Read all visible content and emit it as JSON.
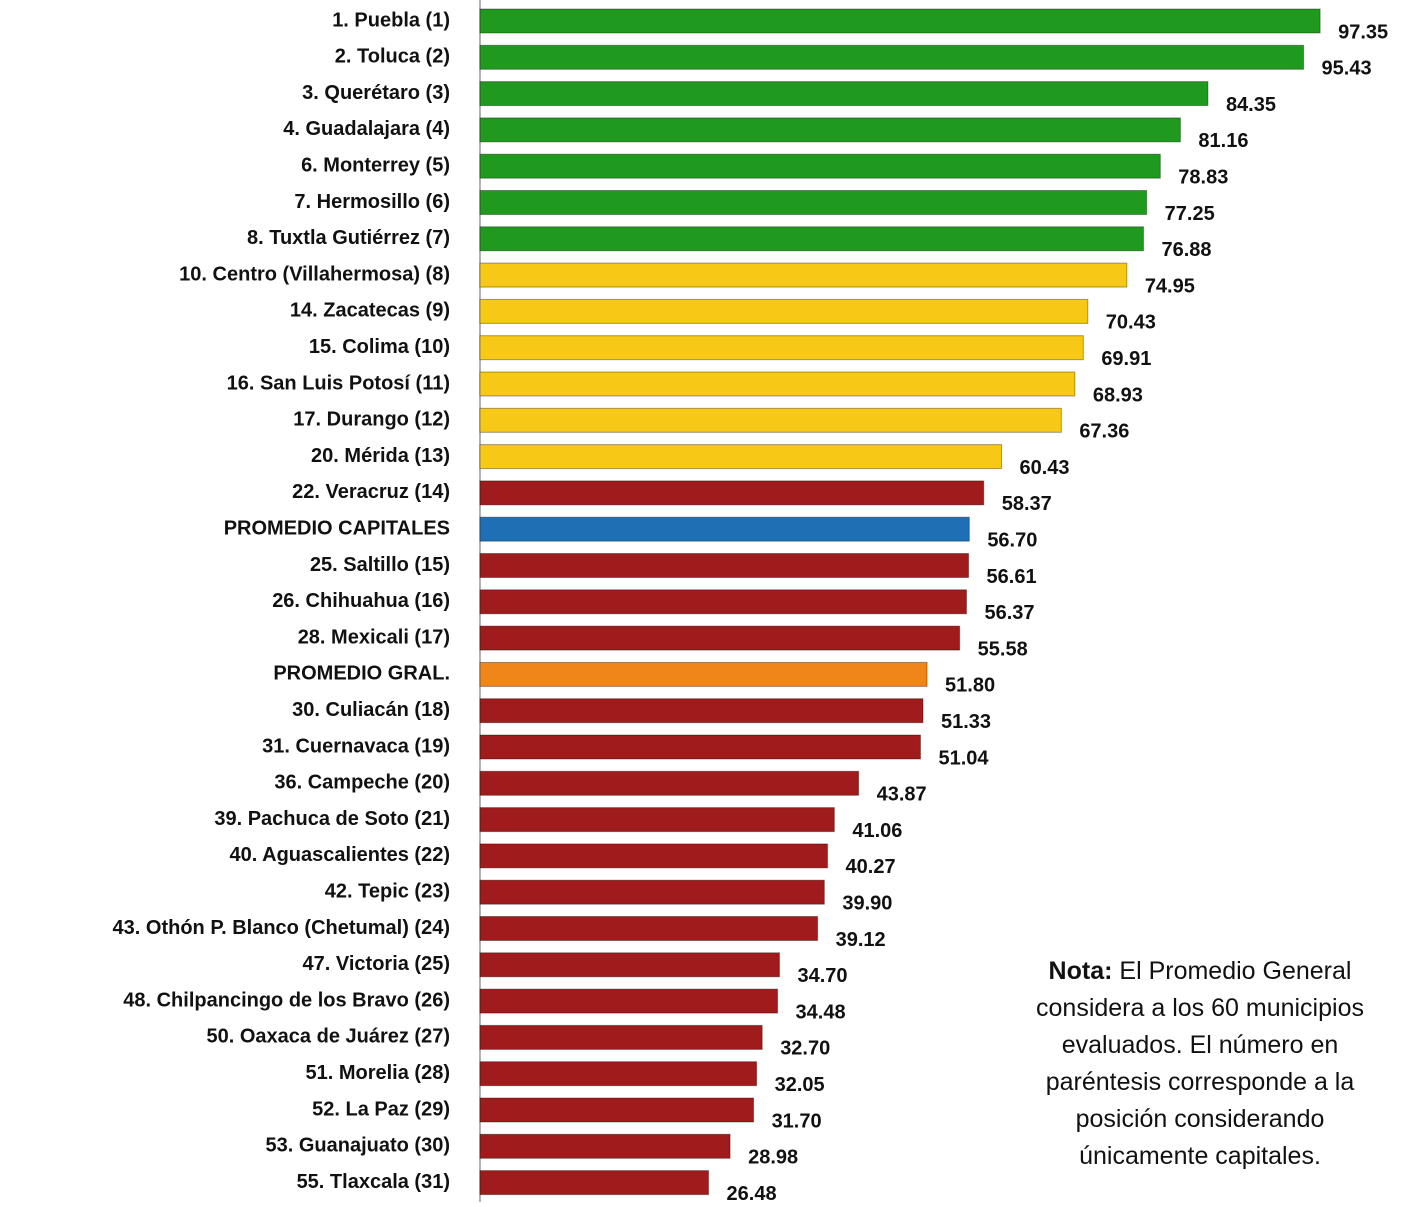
{
  "chart_data": {
    "type": "barh",
    "categories": [
      "1. Puebla (1)",
      "2. Toluca (2)",
      "3. Querétaro (3)",
      "4. Guadalajara (4)",
      "6. Monterrey (5)",
      "7. Hermosillo (6)",
      "8. Tuxtla Gutiérrez (7)",
      "10. Centro (Villahermosa) (8)",
      "14. Zacatecas (9)",
      "15. Colima (10)",
      "16. San Luis Potosí (11)",
      "17. Durango (12)",
      "20. Mérida (13)",
      "22. Veracruz (14)",
      "PROMEDIO CAPITALES",
      "25. Saltillo (15)",
      "26. Chihuahua (16)",
      "28. Mexicali (17)",
      "PROMEDIO GRAL.",
      "30. Culiacán (18)",
      "31. Cuernavaca (19)",
      "36. Campeche (20)",
      "39. Pachuca de Soto (21)",
      "40. Aguascalientes (22)",
      "42. Tepic (23)",
      "43. Othón P. Blanco (Chetumal) (24)",
      "47. Victoria (25)",
      "48. Chilpancingo de los Bravo (26)",
      "50. Oaxaca de Juárez (27)",
      "51. Morelia (28)",
      "52. La Paz (29)",
      "53. Guanajuato (30)",
      "55. Tlaxcala (31)"
    ],
    "values": [
      97.35,
      95.43,
      84.35,
      81.16,
      78.83,
      77.25,
      76.88,
      74.95,
      70.43,
      69.91,
      68.93,
      67.36,
      60.43,
      58.37,
      56.7,
      56.61,
      56.37,
      55.58,
      51.8,
      51.33,
      51.04,
      43.87,
      41.06,
      40.27,
      39.9,
      39.12,
      34.7,
      34.48,
      32.7,
      32.05,
      31.7,
      28.98,
      26.48
    ],
    "value_labels": [
      "97.35",
      "95.43",
      "84.35",
      "81.16",
      "78.83",
      "77.25",
      "76.88",
      "74.95",
      "70.43",
      "69.91",
      "68.93",
      "67.36",
      "60.43",
      "58.37",
      "56.70",
      "56.61",
      "56.37",
      "55.58",
      "51.80",
      "51.33",
      "51.04",
      "43.87",
      "41.06",
      "40.27",
      "39.90",
      "39.12",
      "34.70",
      "34.48",
      "32.70",
      "32.05",
      "31.70",
      "28.98",
      "26.48"
    ],
    "colors": [
      "#1f9a1f",
      "#1f9a1f",
      "#1f9a1f",
      "#1f9a1f",
      "#1f9a1f",
      "#1f9a1f",
      "#1f9a1f",
      "#f7c815",
      "#f7c815",
      "#f7c815",
      "#f7c815",
      "#f7c815",
      "#f7c815",
      "#a01b1b",
      "#1f6fb5",
      "#a01b1b",
      "#a01b1b",
      "#a01b1b",
      "#f0861a",
      "#a01b1b",
      "#a01b1b",
      "#a01b1b",
      "#a01b1b",
      "#a01b1b",
      "#a01b1b",
      "#a01b1b",
      "#a01b1b",
      "#a01b1b",
      "#a01b1b",
      "#a01b1b",
      "#a01b1b",
      "#a01b1b",
      "#a01b1b"
    ],
    "xlim": [
      0,
      100
    ],
    "note": {
      "label": "Nota:",
      "lines": [
        "El Promedio General",
        "considera a los  60 municipios",
        "evaluados. El número en",
        "paréntesis corresponde a la",
        "posición considerando",
        "únicamente capitales."
      ]
    }
  }
}
